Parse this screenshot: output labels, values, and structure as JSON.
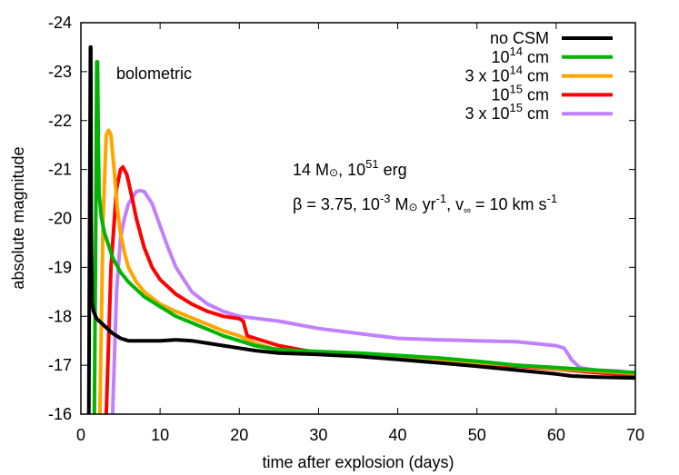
{
  "chart_data": {
    "type": "line",
    "title": "",
    "xlabel": "time after explosion (days)",
    "ylabel": "absolute magnitude",
    "xlim": [
      0,
      70
    ],
    "ylim": [
      -16,
      -24
    ],
    "y_inverted": true,
    "xticks": [
      0,
      10,
      20,
      30,
      40,
      50,
      60,
      70
    ],
    "yticks": [
      -24,
      -23,
      -22,
      -21,
      -20,
      -19,
      -18,
      -17,
      -16
    ],
    "grid": false,
    "legend_position": "top-right",
    "annotations": [
      "bolometric",
      "14 M⊙, 10^51 erg",
      "β = 3.75, 10^-3 M⊙ yr^-1, v∞ = 10 km s^-1"
    ],
    "series": [
      {
        "name": "no CSM",
        "color": "#000000",
        "x": [
          1.0,
          1.1,
          1.2,
          1.25,
          1.3,
          1.4,
          1.6,
          2,
          3,
          4,
          5,
          6,
          8,
          10,
          12,
          14,
          16,
          18,
          20,
          22,
          25,
          30,
          35,
          40,
          45,
          50,
          55,
          60,
          62,
          65,
          70
        ],
        "y": [
          -16.0,
          -20.0,
          -23.5,
          -23.5,
          -20.0,
          -18.3,
          -18.1,
          -17.95,
          -17.8,
          -17.65,
          -17.55,
          -17.5,
          -17.5,
          -17.5,
          -17.52,
          -17.5,
          -17.45,
          -17.4,
          -17.35,
          -17.3,
          -17.25,
          -17.22,
          -17.18,
          -17.12,
          -17.05,
          -16.98,
          -16.9,
          -16.82,
          -16.78,
          -16.76,
          -16.74
        ]
      },
      {
        "name": "10^14 cm",
        "color": "#00b400",
        "x": [
          1.7,
          1.9,
          2.0,
          2.1,
          2.2,
          2.3,
          2.6,
          3,
          4,
          5,
          6,
          8,
          10,
          12,
          15,
          18,
          20,
          22,
          25,
          30,
          35,
          40,
          45,
          50,
          55,
          60,
          65,
          70
        ],
        "y": [
          -16.0,
          -20.5,
          -23.2,
          -23.2,
          -21.5,
          -20.5,
          -20.0,
          -19.7,
          -19.2,
          -18.9,
          -18.7,
          -18.4,
          -18.2,
          -18.0,
          -17.8,
          -17.6,
          -17.5,
          -17.4,
          -17.32,
          -17.28,
          -17.25,
          -17.2,
          -17.15,
          -17.08,
          -17.0,
          -16.95,
          -16.9,
          -16.85
        ]
      },
      {
        "name": "3 x 10^14 cm",
        "color": "#ffa500",
        "x": [
          2.4,
          2.8,
          3.2,
          3.5,
          3.8,
          4.2,
          4.6,
          5,
          5.5,
          6,
          7,
          8,
          10,
          12,
          15,
          18,
          20,
          22,
          25,
          30,
          35,
          40,
          45,
          50,
          55,
          60,
          65,
          70
        ],
        "y": [
          -16.0,
          -20.0,
          -21.7,
          -21.8,
          -21.7,
          -21.0,
          -20.2,
          -19.7,
          -19.3,
          -19.0,
          -18.7,
          -18.5,
          -18.25,
          -18.1,
          -17.9,
          -17.7,
          -17.6,
          -17.45,
          -17.3,
          -17.25,
          -17.22,
          -17.18,
          -17.12,
          -17.05,
          -17.0,
          -16.93,
          -16.88,
          -16.83
        ]
      },
      {
        "name": "10^15 cm",
        "color": "#ff0000",
        "x": [
          3.2,
          3.8,
          4.5,
          5.0,
          5.3,
          5.8,
          6.5,
          7,
          8,
          9,
          10,
          12,
          14,
          16,
          18,
          20,
          20.5,
          21,
          22,
          25,
          30,
          35,
          40,
          45,
          50,
          55,
          60,
          65,
          70
        ],
        "y": [
          -16.0,
          -19.0,
          -20.6,
          -21.0,
          -21.05,
          -20.9,
          -20.4,
          -20.0,
          -19.4,
          -19.0,
          -18.75,
          -18.45,
          -18.25,
          -18.1,
          -18.0,
          -17.95,
          -17.9,
          -17.6,
          -17.55,
          -17.4,
          -17.25,
          -17.2,
          -17.15,
          -17.1,
          -17.02,
          -16.98,
          -16.92,
          -16.85,
          -16.8
        ]
      },
      {
        "name": "3 x 10^15 cm",
        "color": "#c080ff",
        "x": [
          4.0,
          4.5,
          5,
          5.5,
          6,
          7,
          7.5,
          8,
          9,
          10,
          11,
          12,
          14,
          16,
          18,
          20,
          25,
          30,
          35,
          40,
          45,
          50,
          55,
          60,
          61,
          62,
          63,
          65,
          68,
          70
        ],
        "y": [
          -16.0,
          -18.5,
          -19.6,
          -20.0,
          -20.3,
          -20.55,
          -20.57,
          -20.55,
          -20.3,
          -19.85,
          -19.4,
          -19.0,
          -18.5,
          -18.25,
          -18.1,
          -18.0,
          -17.9,
          -17.75,
          -17.65,
          -17.55,
          -17.52,
          -17.5,
          -17.48,
          -17.4,
          -17.35,
          -17.1,
          -16.95,
          -16.9,
          -16.88,
          -16.82
        ]
      }
    ]
  },
  "legend": {
    "items": [
      {
        "base": "no CSM",
        "sup": "",
        "suffix": ""
      },
      {
        "base": "10",
        "sup": "14",
        "suffix": " cm"
      },
      {
        "base": "3 x 10",
        "sup": "14",
        "suffix": " cm"
      },
      {
        "base": "10",
        "sup": "15",
        "suffix": " cm"
      },
      {
        "base": "3 x 10",
        "sup": "15",
        "suffix": " cm"
      }
    ]
  },
  "labels": {
    "bolometric": "bolometric",
    "mass_line": {
      "a": "14 M",
      "sun": "⊙",
      "b": ", 10",
      "sup": "51",
      "c": " erg"
    },
    "param_line": {
      "a": "β = 3.75, 10",
      "sup1": "-3",
      "b": " M",
      "sun": "⊙",
      "c": " yr",
      "sup2": "-1",
      "d": ", v",
      "sub": "∞",
      "e": " = 10 km s",
      "sup3": "-1"
    }
  }
}
